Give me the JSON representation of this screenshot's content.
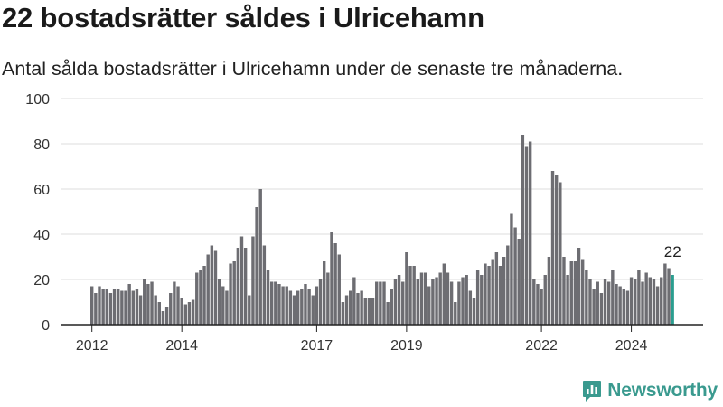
{
  "title": "22 bostadsrätter såldes i Ulricehamn",
  "subtitle": "Antal sålda bostadsrätter i Ulricehamn under de senaste tre månaderna.",
  "brand": {
    "name": "Newsworthy",
    "icon": "newsworthy-logo-icon",
    "color": "#3a9a8f"
  },
  "colors": {
    "bar": "#6d6d72",
    "highlight": "#2a9d8f",
    "axis": "#222222",
    "grid": "#dddddd"
  },
  "chart_data": {
    "type": "bar",
    "x_start": "2012-01",
    "x_ticks": [
      "2012",
      "2014",
      "2017",
      "2019",
      "2022",
      "2024"
    ],
    "y_ticks": [
      0,
      20,
      40,
      60,
      80,
      100
    ],
    "ylim": [
      0,
      100
    ],
    "grid": true,
    "values": [
      17,
      14,
      17,
      16,
      16,
      14,
      16,
      16,
      15,
      15,
      18,
      15,
      16,
      13,
      20,
      18,
      19,
      13,
      10,
      6,
      8,
      14,
      19,
      17,
      12,
      9,
      10,
      11,
      23,
      24,
      26,
      31,
      35,
      33,
      20,
      17,
      15,
      27,
      28,
      34,
      39,
      34,
      13,
      39,
      52,
      60,
      35,
      24,
      19,
      19,
      18,
      17,
      17,
      15,
      13,
      15,
      16,
      18,
      16,
      13,
      17,
      20,
      28,
      23,
      41,
      36,
      31,
      10,
      13,
      15,
      21,
      14,
      15,
      12,
      12,
      12,
      19,
      19,
      19,
      10,
      16,
      20,
      22,
      19,
      32,
      26,
      26,
      20,
      23,
      23,
      17,
      20,
      21,
      23,
      27,
      23,
      19,
      10,
      19,
      21,
      22,
      15,
      12,
      24,
      22,
      27,
      26,
      29,
      32,
      26,
      30,
      35,
      49,
      43,
      38,
      84,
      79,
      81,
      20,
      18,
      16,
      22,
      30,
      68,
      66,
      63,
      30,
      22,
      28,
      28,
      34,
      29,
      24,
      20,
      16,
      19,
      14,
      20,
      19,
      24,
      18,
      17,
      16,
      15,
      21,
      20,
      24,
      19,
      23,
      21,
      20,
      17,
      21,
      27,
      25,
      22
    ],
    "highlight_last": true,
    "annotation": {
      "text": "22"
    }
  }
}
